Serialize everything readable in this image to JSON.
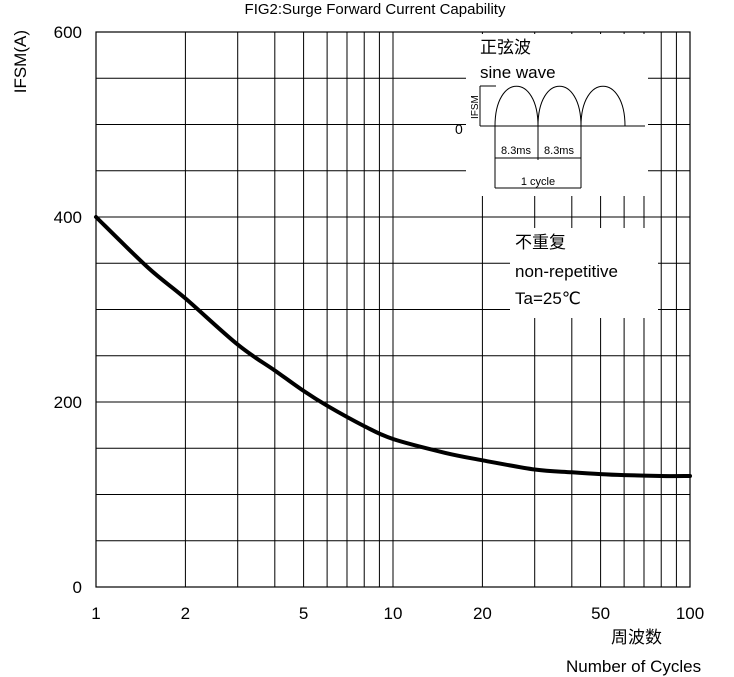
{
  "chart_data": {
    "type": "line",
    "title": "FIG2:Surge Forward Current Capability",
    "ylabel": "IFSM(A)",
    "xlabel_cn": "周波数",
    "xlabel": "Number of Cycles",
    "x_scale": "log",
    "xlim": [
      1,
      100
    ],
    "ylim": [
      0,
      600
    ],
    "x_ticks": [
      1,
      2,
      5,
      10,
      20,
      50,
      100
    ],
    "y_ticks": [
      0,
      200,
      400,
      600
    ],
    "grid": true,
    "series": [
      {
        "x": [
          1,
          1.5,
          2,
          3,
          4,
          5,
          6,
          8,
          10,
          15,
          20,
          30,
          40,
          50,
          60,
          80,
          100
        ],
        "y": [
          400,
          345,
          312,
          262,
          234,
          212,
          196,
          174,
          160,
          145,
          137,
          127,
          124,
          122,
          121,
          120,
          120
        ]
      }
    ],
    "annotations": {
      "inset_cn": "正弦波",
      "inset_en": "sine wave",
      "inset_ylabel": "IFSM",
      "inset_zero": "0",
      "inset_period_1": "8.3ms",
      "inset_period_2": "8.3ms",
      "inset_cycle": "1 cycle",
      "cond_cn": "不重复",
      "cond_en": "non-repetitive",
      "cond_temp": "Ta=25℃"
    }
  }
}
